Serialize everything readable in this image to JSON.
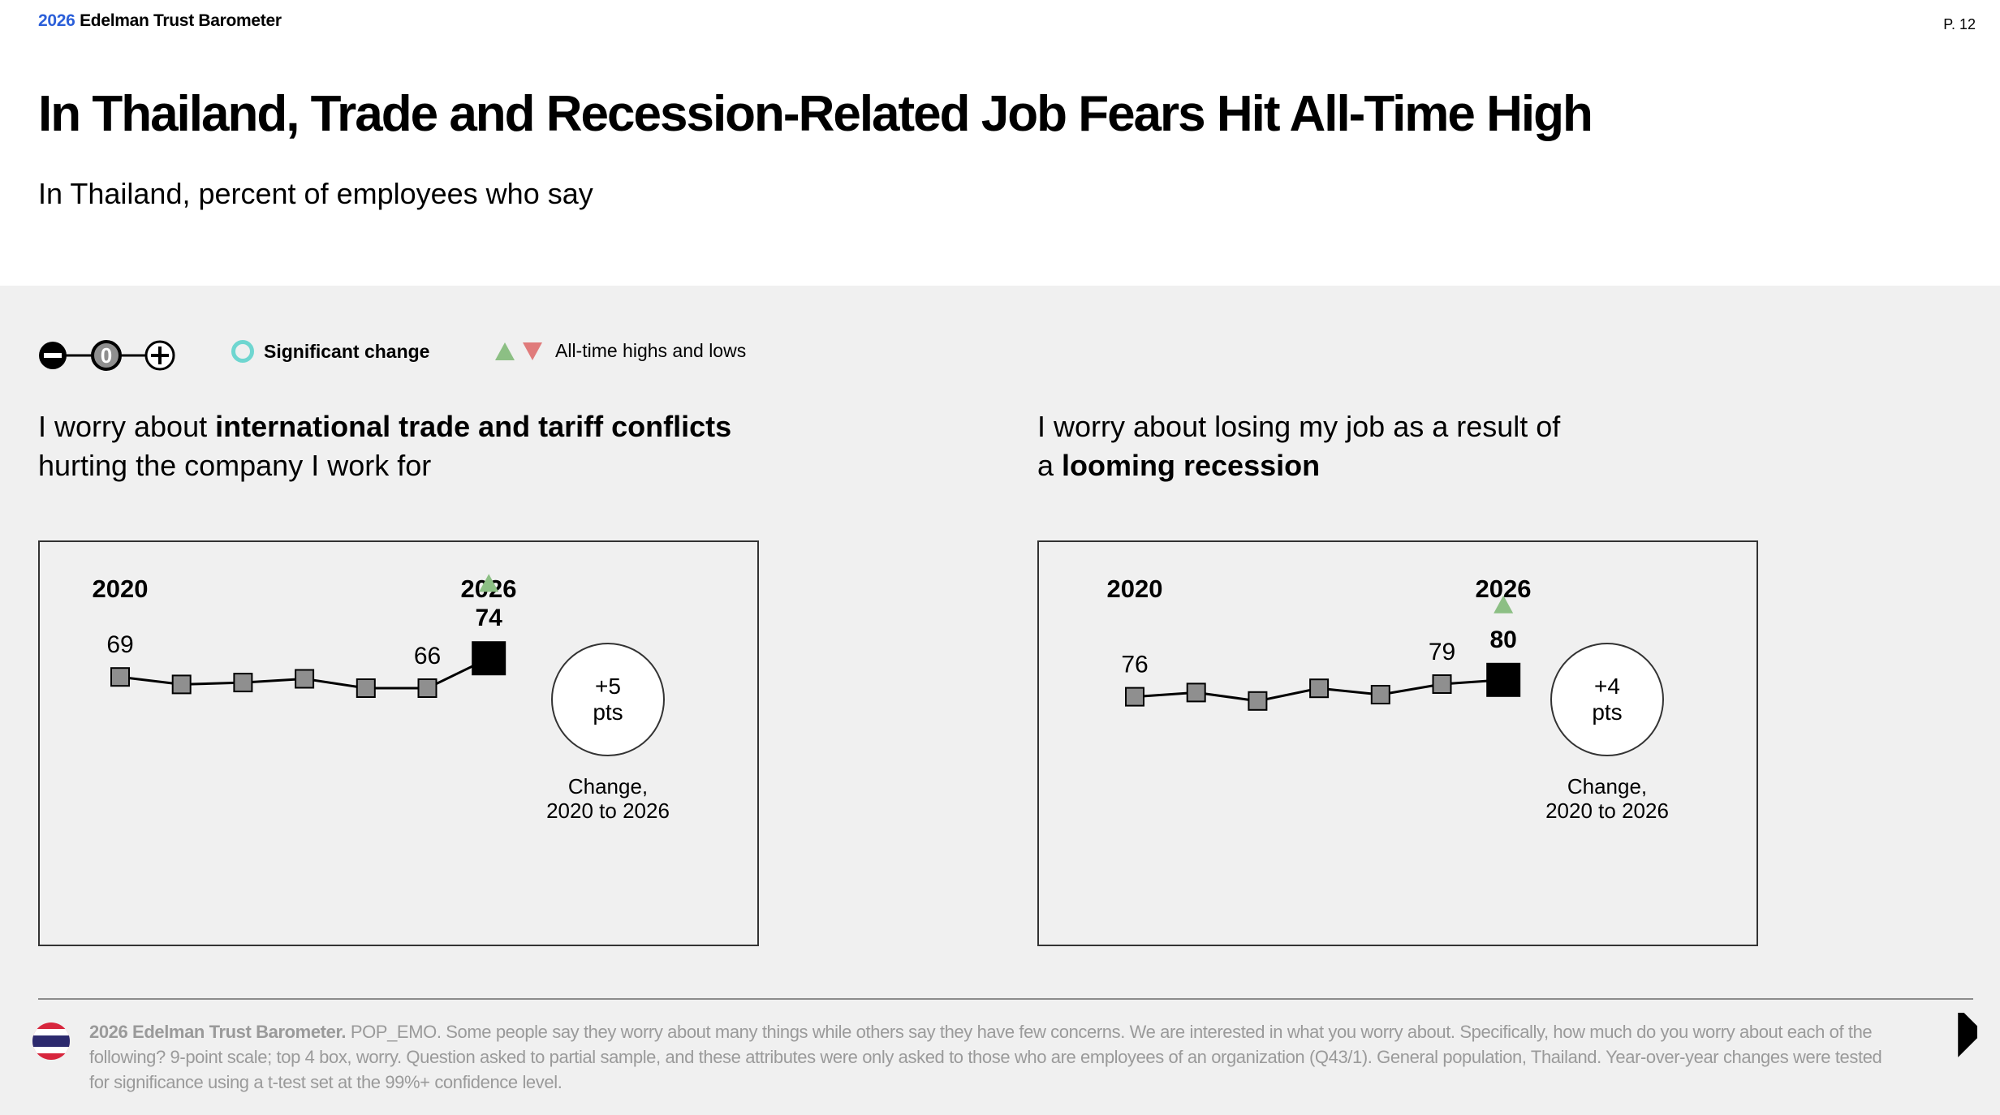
{
  "header": {
    "brand_year": "2026",
    "brand_name": "Edelman Trust Barometer",
    "page": "P. 12",
    "title": "In Thailand, Trade and Recession-Related Job Fears Hit All-Time High",
    "subtitle": "In Thailand, percent of employees who say"
  },
  "legend": {
    "significant_change": "Significant change",
    "highs_lows": "All-time highs and lows",
    "scale_neutral": "0"
  },
  "colors": {
    "brand_blue": "#2b5fd9",
    "significant": "#6fd6d0",
    "high": "#8cbf84",
    "low": "#e07b7b",
    "marker": "#8f8f8f"
  },
  "charts": [
    {
      "q_pre": "I worry about ",
      "q_bold": "international trade and tariff conflicts",
      "q_post": "hurting the company I work for",
      "change_value": "+5",
      "change_unit": "pts",
      "change_label_1": "Change,",
      "change_label_2": "2020 to 2026"
    },
    {
      "q_pre": "I worry about losing my job as a result of",
      "q_mid": "a ",
      "q_bold": "looming recession",
      "change_value": "+4",
      "change_unit": "pts",
      "change_label_1": "Change,",
      "change_label_2": "2020 to 2026"
    }
  ],
  "chart_data": [
    {
      "type": "line",
      "start_label": "2020",
      "end_label": "2026",
      "values": [
        69,
        67,
        67.5,
        68.5,
        66,
        66,
        74
      ],
      "labeled_points": [
        0,
        5,
        6
      ],
      "all_time_high_index": 6
    },
    {
      "type": "line",
      "start_label": "2020",
      "end_label": "2026",
      "values": [
        76,
        77,
        75,
        78,
        76.5,
        79,
        80
      ],
      "labeled_points": [
        0,
        5,
        6
      ],
      "all_time_high_index": 6
    }
  ],
  "footer": {
    "source_bold": "2026 Edelman Trust Barometer.",
    "source_text": " POP_EMO. Some people say they worry about many things while others say they have few concerns. We are interested in what you worry about. Specifically, how much do you worry about each of the following? 9-point scale; top 4 box, worry. Question asked to partial sample, and these attributes were only asked to those who are employees of an organization (Q43/1). General population, Thailand. Year-over-year changes were tested for significance using a t-test set at the 99%+ confidence level."
  }
}
